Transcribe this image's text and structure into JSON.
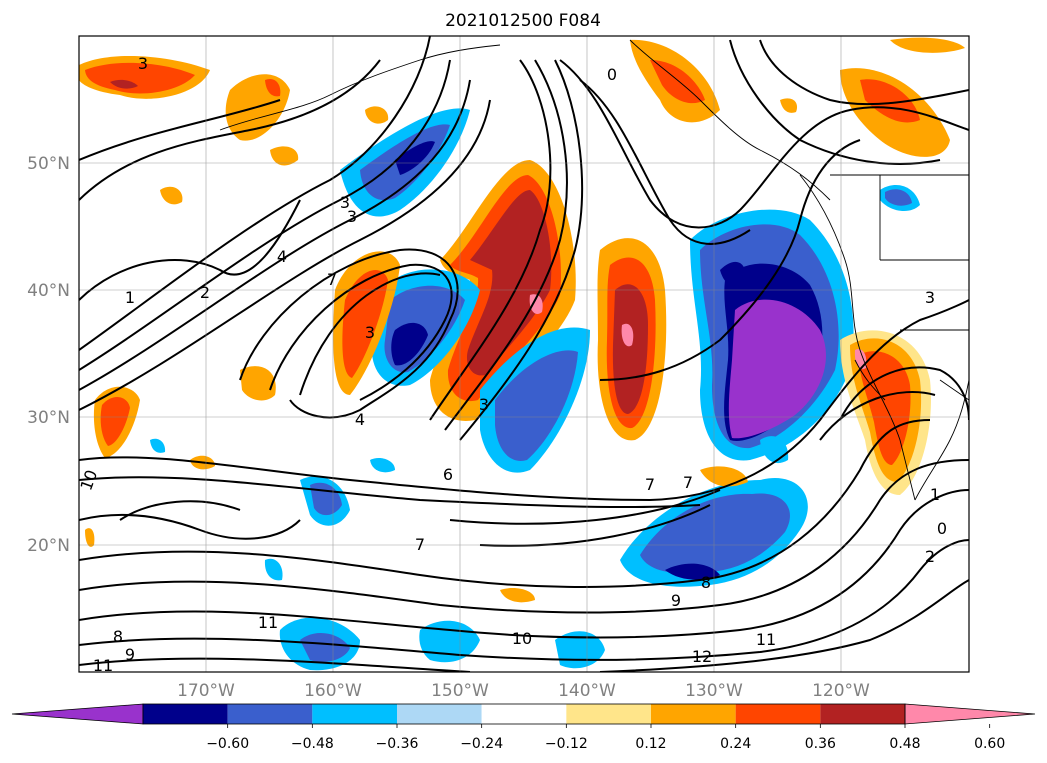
{
  "figure": {
    "title": "2021012500 F084"
  },
  "map": {
    "lon_range": [
      -180,
      -110
    ],
    "lat_range": [
      10,
      60
    ],
    "lat_ticks": [
      "50°N",
      "40°N",
      "30°N",
      "20°N"
    ],
    "lon_ticks": [
      "170°W",
      "160°W",
      "150°W",
      "140°W",
      "130°W",
      "120°W"
    ],
    "contour_labels": [
      "0",
      "1",
      "2",
      "3",
      "3",
      "3",
      "3",
      "3",
      "3",
      "4",
      "4",
      "6",
      "7",
      "7",
      "7",
      "7",
      "8",
      "8",
      "9",
      "9",
      "10",
      "10",
      "11",
      "11",
      "11",
      "12",
      "0",
      "1",
      "2"
    ],
    "fill_legend": "shaded field"
  },
  "colorbar": {
    "ticks": [
      "−0.60",
      "−0.48",
      "−0.36",
      "−0.24",
      "−0.12",
      "0.12",
      "0.24",
      "0.36",
      "0.48",
      "0.60"
    ],
    "colors": [
      "#9932cc",
      "#00008b",
      "#3a5fcd",
      "#00bfff",
      "#add8f5",
      "#ffffff",
      "#ffe58a",
      "#ffa500",
      "#ff4500",
      "#b22222",
      "#ff88aa"
    ]
  }
}
